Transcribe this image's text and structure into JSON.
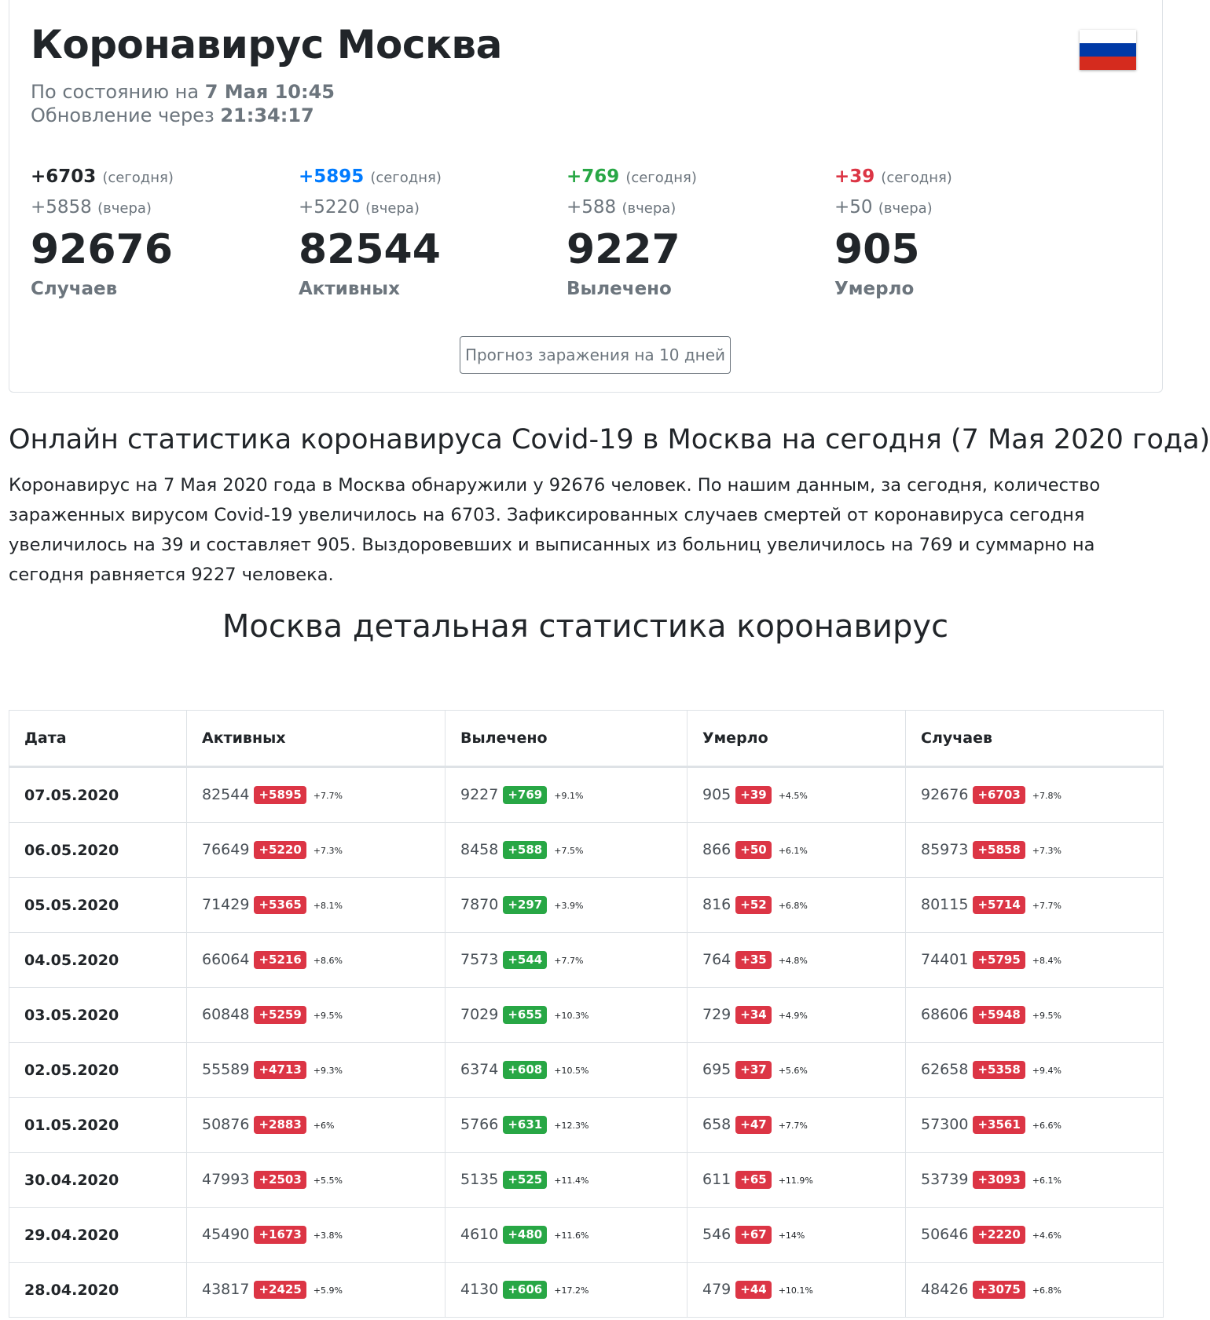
{
  "header": {
    "title": "Коронавирус Москва",
    "status_prefix": "По состоянию на",
    "status_date": "7 Мая 10:45",
    "update_prefix": "Обновление через",
    "update_timer": "21:34:17",
    "flag_icon": "russia-flag-icon"
  },
  "colors": {
    "cases": "#212529",
    "active": "#007bff",
    "recovered": "#28a745",
    "deaths": "#dc3545"
  },
  "stats": [
    {
      "key": "cases",
      "today": "+6703",
      "today_note": "(сегодня)",
      "yesterday": "+5858",
      "yesterday_note": "(вчера)",
      "total": "92676",
      "label": "Случаев"
    },
    {
      "key": "active",
      "today": "+5895",
      "today_note": "(сегодня)",
      "yesterday": "+5220",
      "yesterday_note": "(вчера)",
      "total": "82544",
      "label": "Активных"
    },
    {
      "key": "recovered",
      "today": "+769",
      "today_note": "(сегодня)",
      "yesterday": "+588",
      "yesterday_note": "(вчера)",
      "total": "9227",
      "label": "Вылечено"
    },
    {
      "key": "deaths",
      "today": "+39",
      "today_note": "(сегодня)",
      "yesterday": "+50",
      "yesterday_note": "(вчера)",
      "total": "905",
      "label": "Умерло"
    }
  ],
  "forecast_button": "Прогноз заражения на 10 дней",
  "online_title": "Онлайн статистика коронавируса Covid-19 в Москва на сегодня (7 Мая 2020 года)",
  "online_text": "Коронавирус на 7 Мая 2020 года в Москва обнаружили у 92676 человек. По нашим данным, за сегодня, количество зараженных вирусом Covid-19 увеличилось на 6703. Зафиксированных случаев смертей от коронавируса сегодня увеличилось на 39 и составляет 905. Выздоровевших и выписанных из больниц увеличилось на 769 и суммарно на сегодня равняется 9227 человека.",
  "detail_title": "Москва детальная статистика коронавирус",
  "table": {
    "headers": [
      "Дата",
      "Активных",
      "Вылечено",
      "Умерло",
      "Случаев"
    ],
    "rows": [
      {
        "date": "07.05.2020",
        "active": "82544",
        "active_d": "+5895",
        "active_p": "+7.7%",
        "rec": "9227",
        "rec_d": "+769",
        "rec_p": "+9.1%",
        "dead": "905",
        "dead_d": "+39",
        "dead_p": "+4.5%",
        "cases": "92676",
        "cases_d": "+6703",
        "cases_p": "+7.8%"
      },
      {
        "date": "06.05.2020",
        "active": "76649",
        "active_d": "+5220",
        "active_p": "+7.3%",
        "rec": "8458",
        "rec_d": "+588",
        "rec_p": "+7.5%",
        "dead": "866",
        "dead_d": "+50",
        "dead_p": "+6.1%",
        "cases": "85973",
        "cases_d": "+5858",
        "cases_p": "+7.3%"
      },
      {
        "date": "05.05.2020",
        "active": "71429",
        "active_d": "+5365",
        "active_p": "+8.1%",
        "rec": "7870",
        "rec_d": "+297",
        "rec_p": "+3.9%",
        "dead": "816",
        "dead_d": "+52",
        "dead_p": "+6.8%",
        "cases": "80115",
        "cases_d": "+5714",
        "cases_p": "+7.7%"
      },
      {
        "date": "04.05.2020",
        "active": "66064",
        "active_d": "+5216",
        "active_p": "+8.6%",
        "rec": "7573",
        "rec_d": "+544",
        "rec_p": "+7.7%",
        "dead": "764",
        "dead_d": "+35",
        "dead_p": "+4.8%",
        "cases": "74401",
        "cases_d": "+5795",
        "cases_p": "+8.4%"
      },
      {
        "date": "03.05.2020",
        "active": "60848",
        "active_d": "+5259",
        "active_p": "+9.5%",
        "rec": "7029",
        "rec_d": "+655",
        "rec_p": "+10.3%",
        "dead": "729",
        "dead_d": "+34",
        "dead_p": "+4.9%",
        "cases": "68606",
        "cases_d": "+5948",
        "cases_p": "+9.5%"
      },
      {
        "date": "02.05.2020",
        "active": "55589",
        "active_d": "+4713",
        "active_p": "+9.3%",
        "rec": "6374",
        "rec_d": "+608",
        "rec_p": "+10.5%",
        "dead": "695",
        "dead_d": "+37",
        "dead_p": "+5.6%",
        "cases": "62658",
        "cases_d": "+5358",
        "cases_p": "+9.4%"
      },
      {
        "date": "01.05.2020",
        "active": "50876",
        "active_d": "+2883",
        "active_p": "+6%",
        "rec": "5766",
        "rec_d": "+631",
        "rec_p": "+12.3%",
        "dead": "658",
        "dead_d": "+47",
        "dead_p": "+7.7%",
        "cases": "57300",
        "cases_d": "+3561",
        "cases_p": "+6.6%"
      },
      {
        "date": "30.04.2020",
        "active": "47993",
        "active_d": "+2503",
        "active_p": "+5.5%",
        "rec": "5135",
        "rec_d": "+525",
        "rec_p": "+11.4%",
        "dead": "611",
        "dead_d": "+65",
        "dead_p": "+11.9%",
        "cases": "53739",
        "cases_d": "+3093",
        "cases_p": "+6.1%"
      },
      {
        "date": "29.04.2020",
        "active": "45490",
        "active_d": "+1673",
        "active_p": "+3.8%",
        "rec": "4610",
        "rec_d": "+480",
        "rec_p": "+11.6%",
        "dead": "546",
        "dead_d": "+67",
        "dead_p": "+14%",
        "cases": "50646",
        "cases_d": "+2220",
        "cases_p": "+4.6%"
      },
      {
        "date": "28.04.2020",
        "active": "43817",
        "active_d": "+2425",
        "active_p": "+5.9%",
        "rec": "4130",
        "rec_d": "+606",
        "rec_p": "+17.2%",
        "dead": "479",
        "dead_d": "+44",
        "dead_p": "+10.1%",
        "cases": "48426",
        "cases_d": "+3075",
        "cases_p": "+6.8%"
      }
    ]
  }
}
